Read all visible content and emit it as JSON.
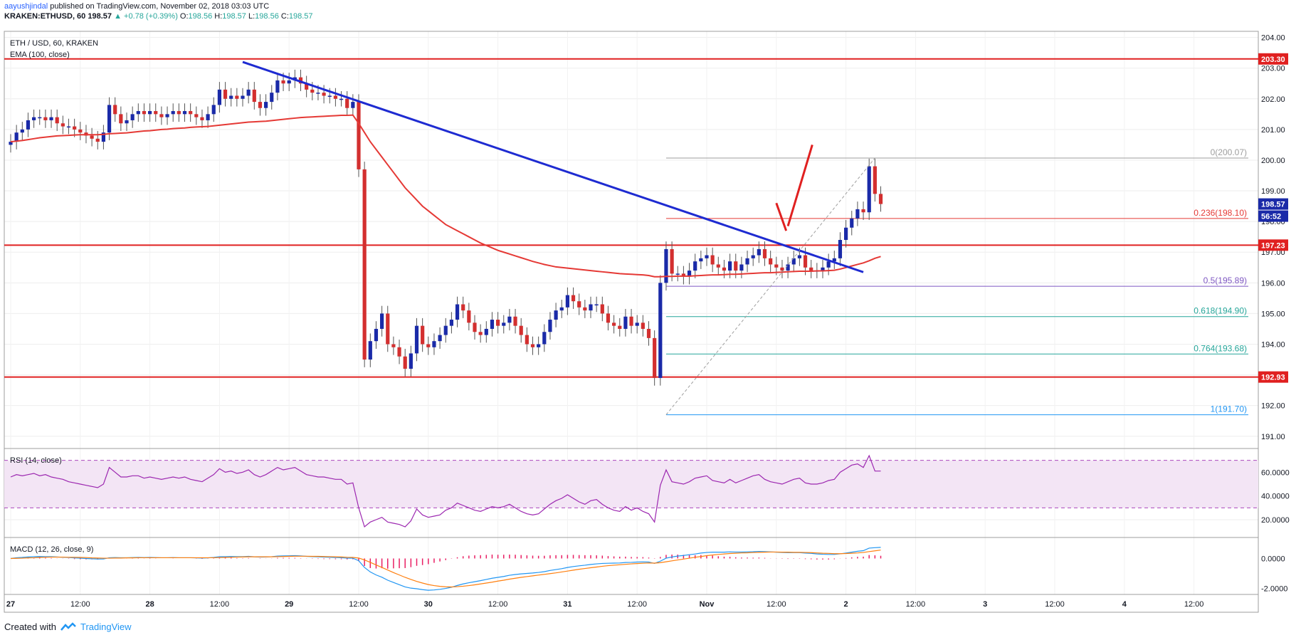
{
  "header": {
    "author": "aayushjindal",
    "published_text": "published on TradingView.com, November 02, 2018 03:03 UTC",
    "symbol": "KRAKEN:ETHUSD, 60",
    "last": "198.57",
    "change": "▲ +0.78 (+0.39%)",
    "o_label": "O:",
    "o_value": "198.56",
    "h_label": "H:",
    "h_value": "198.57",
    "l_label": "L:",
    "l_value": "198.56",
    "c_label": "C:",
    "c_value": "198.57"
  },
  "footer": {
    "created_with": "Created with",
    "brand": "TradingView"
  },
  "colors": {
    "up": "#1a2aa8",
    "down": "#d32f2f",
    "ema": "#e53935",
    "trend": "#1e2bd1",
    "support": "#e02020",
    "rsi": "#9c27b0",
    "rsi_band": "#f3e5f5",
    "macd": "#2196f3",
    "signal": "#ff7f0e",
    "hist": "#e91e63"
  },
  "chart_data": [
    {
      "type": "candlestick",
      "title": "ETH / USD, 60, KRAKEN",
      "indicator_label": "EMA (100, close)",
      "timeframe_hours": 1,
      "x_ticks": [
        "27",
        "12:00",
        "28",
        "12:00",
        "29",
        "12:00",
        "30",
        "12:00",
        "31",
        "12:00",
        "Nov",
        "12:00",
        "2",
        "12:00",
        "3",
        "12:00",
        "4",
        "12:00"
      ],
      "ylim": [
        190.6,
        204.2
      ],
      "y_ticks": [
        "191.00",
        "192.00",
        "193.00",
        "194.00",
        "195.00",
        "196.00",
        "197.00",
        "198.00",
        "199.00",
        "200.00",
        "201.00",
        "202.00",
        "203.00",
        "204.00"
      ],
      "last_price_label": "198.57",
      "countdown_label": "56:52",
      "horizontal_levels": [
        {
          "price": 203.3,
          "label": "203.30"
        },
        {
          "price": 197.23,
          "label": "197.23"
        },
        {
          "price": 192.93,
          "label": "192.93"
        }
      ],
      "fibonacci": [
        {
          "level": "0",
          "price": 200.07,
          "label": "0(200.07)",
          "color": "#9e9e9e"
        },
        {
          "level": "0.236",
          "price": 198.1,
          "label": "0.236(198.10)",
          "color": "#e53935"
        },
        {
          "level": "0.5",
          "price": 195.89,
          "label": "0.5(195.89)",
          "color": "#7e57c2"
        },
        {
          "level": "0.618",
          "price": 194.9,
          "label": "0.618(194.90)",
          "color": "#26a69a"
        },
        {
          "level": "0.764",
          "price": 193.68,
          "label": "0.764(193.68)",
          "color": "#26a69a"
        },
        {
          "level": "1",
          "price": 191.7,
          "label": "1(191.70)",
          "color": "#2196f3"
        }
      ],
      "closes": [
        200.6,
        200.9,
        201.0,
        201.3,
        201.4,
        201.4,
        201.3,
        201.4,
        201.2,
        201.1,
        201.1,
        201.0,
        200.9,
        200.8,
        200.7,
        200.6,
        200.9,
        201.8,
        201.5,
        201.2,
        201.3,
        201.5,
        201.6,
        201.5,
        201.6,
        201.5,
        201.4,
        201.5,
        201.6,
        201.5,
        201.6,
        201.5,
        201.4,
        201.3,
        201.5,
        201.8,
        202.3,
        202.0,
        202.1,
        202.0,
        202.1,
        202.3,
        201.9,
        201.7,
        201.9,
        202.2,
        202.6,
        202.5,
        202.6,
        202.7,
        202.5,
        202.3,
        202.2,
        202.2,
        202.1,
        202.1,
        202.0,
        202.0,
        201.7,
        201.9,
        199.7,
        193.5,
        194.1,
        194.5,
        195.0,
        194.0,
        193.9,
        193.6,
        193.2,
        193.7,
        194.6,
        194.0,
        193.9,
        194.1,
        194.3,
        194.6,
        194.8,
        195.3,
        195.1,
        194.7,
        194.4,
        194.3,
        194.5,
        194.8,
        194.6,
        194.7,
        194.9,
        194.6,
        194.3,
        194.0,
        193.9,
        194.0,
        194.4,
        194.8,
        195.1,
        195.2,
        195.6,
        195.4,
        195.2,
        195.1,
        195.3,
        195.3,
        195.0,
        194.7,
        194.6,
        194.5,
        194.9,
        194.6,
        194.7,
        194.5,
        194.2,
        192.9,
        196.0,
        197.1,
        196.3,
        196.3,
        196.2,
        196.4,
        196.7,
        196.8,
        196.9,
        196.6,
        196.5,
        196.4,
        196.7,
        196.4,
        196.6,
        196.8,
        196.9,
        197.1,
        196.8,
        196.6,
        196.5,
        196.4,
        196.6,
        196.8,
        196.9,
        196.5,
        196.4,
        196.4,
        196.5,
        196.7,
        196.8,
        197.4,
        197.8,
        198.1,
        198.4,
        198.3,
        199.8,
        198.9,
        198.57
      ],
      "ema_100": [
        200.6,
        200.62,
        200.64,
        200.67,
        200.7,
        200.73,
        200.75,
        200.77,
        200.79,
        200.8,
        200.81,
        200.82,
        200.83,
        200.83,
        200.83,
        200.83,
        200.84,
        200.86,
        200.87,
        200.88,
        200.89,
        200.91,
        200.93,
        200.95,
        200.96,
        200.98,
        201.0,
        201.01,
        201.03,
        201.04,
        201.05,
        201.07,
        201.08,
        201.09,
        201.1,
        201.12,
        201.14,
        201.16,
        201.18,
        201.2,
        201.22,
        201.24,
        201.25,
        201.26,
        201.27,
        201.29,
        201.31,
        201.33,
        201.35,
        201.37,
        201.39,
        201.4,
        201.41,
        201.42,
        201.43,
        201.44,
        201.45,
        201.46,
        201.46,
        201.47,
        201.2,
        200.9,
        200.6,
        200.35,
        200.1,
        199.85,
        199.6,
        199.35,
        199.1,
        198.9,
        198.7,
        198.5,
        198.35,
        198.2,
        198.05,
        197.9,
        197.8,
        197.7,
        197.6,
        197.5,
        197.4,
        197.3,
        197.22,
        197.14,
        197.06,
        197.0,
        196.94,
        196.88,
        196.82,
        196.76,
        196.7,
        196.65,
        196.6,
        196.56,
        196.52,
        196.5,
        196.48,
        196.46,
        196.44,
        196.42,
        196.4,
        196.38,
        196.36,
        196.34,
        196.32,
        196.3,
        196.29,
        196.28,
        196.27,
        196.26,
        196.24,
        196.2,
        196.2,
        196.21,
        196.21,
        196.22,
        196.22,
        196.22,
        196.23,
        196.24,
        196.25,
        196.26,
        196.26,
        196.27,
        196.28,
        196.28,
        196.29,
        196.3,
        196.31,
        196.32,
        196.33,
        196.33,
        196.34,
        196.35,
        196.36,
        196.37,
        196.38,
        196.38,
        196.38,
        196.39,
        196.39,
        196.4,
        196.41,
        196.45,
        196.5,
        196.55,
        196.6,
        196.65,
        196.72,
        196.8,
        196.86
      ]
    },
    {
      "type": "line",
      "title": "RSI (14, close)",
      "ylim": [
        5,
        80
      ],
      "y_ticks": [
        "20.0000",
        "40.0000",
        "60.0000"
      ],
      "bands": [
        30,
        70
      ],
      "values": [
        56,
        58,
        57,
        58,
        59,
        57,
        58,
        56,
        55,
        54,
        52,
        51,
        50,
        49,
        48,
        47,
        50,
        64,
        60,
        56,
        56,
        57,
        57,
        55,
        56,
        55,
        54,
        55,
        56,
        55,
        56,
        54,
        53,
        52,
        55,
        58,
        63,
        60,
        61,
        59,
        60,
        62,
        58,
        56,
        58,
        61,
        64,
        62,
        63,
        64,
        61,
        58,
        57,
        56,
        56,
        55,
        54,
        54,
        50,
        51,
        30,
        14,
        18,
        20,
        22,
        18,
        17,
        16,
        14,
        19,
        29,
        24,
        22,
        23,
        24,
        28,
        30,
        34,
        32,
        30,
        28,
        27,
        29,
        31,
        30,
        31,
        33,
        30,
        27,
        25,
        24,
        25,
        29,
        33,
        36,
        38,
        41,
        38,
        35,
        33,
        36,
        37,
        33,
        30,
        28,
        27,
        31,
        28,
        30,
        27,
        25,
        18,
        49,
        62,
        52,
        51,
        50,
        52,
        55,
        56,
        57,
        53,
        52,
        51,
        54,
        51,
        53,
        55,
        57,
        58,
        54,
        52,
        51,
        50,
        52,
        54,
        55,
        51,
        50,
        50,
        51,
        53,
        54,
        60,
        63,
        66,
        67,
        64,
        74,
        61,
        61
      ]
    },
    {
      "type": "histogram+line",
      "title": "MACD (12, 26, close, 9)",
      "ylim": [
        -2.4,
        1.4
      ],
      "y_ticks": [
        "0.0000",
        "-2.0000"
      ],
      "macd": [
        0.0,
        0.05,
        0.07,
        0.1,
        0.12,
        0.13,
        0.12,
        0.12,
        0.1,
        0.08,
        0.06,
        0.04,
        0.02,
        0.0,
        -0.02,
        -0.04,
        -0.03,
        0.05,
        0.06,
        0.05,
        0.05,
        0.06,
        0.07,
        0.06,
        0.07,
        0.06,
        0.05,
        0.05,
        0.06,
        0.05,
        0.05,
        0.05,
        0.04,
        0.03,
        0.04,
        0.07,
        0.12,
        0.12,
        0.13,
        0.12,
        0.12,
        0.14,
        0.11,
        0.09,
        0.1,
        0.12,
        0.16,
        0.17,
        0.18,
        0.19,
        0.17,
        0.14,
        0.12,
        0.11,
        0.09,
        0.08,
        0.06,
        0.05,
        0.02,
        0.02,
        -0.15,
        -0.6,
        -0.9,
        -1.1,
        -1.25,
        -1.45,
        -1.6,
        -1.75,
        -1.9,
        -1.98,
        -2.02,
        -2.08,
        -2.12,
        -2.1,
        -2.06,
        -2.0,
        -1.92,
        -1.8,
        -1.7,
        -1.62,
        -1.55,
        -1.48,
        -1.4,
        -1.32,
        -1.26,
        -1.2,
        -1.12,
        -1.07,
        -1.03,
        -1.0,
        -0.97,
        -0.93,
        -0.88,
        -0.8,
        -0.74,
        -0.68,
        -0.6,
        -0.54,
        -0.49,
        -0.45,
        -0.4,
        -0.36,
        -0.33,
        -0.32,
        -0.31,
        -0.3,
        -0.27,
        -0.26,
        -0.24,
        -0.23,
        -0.24,
        -0.33,
        -0.18,
        0.02,
        0.1,
        0.16,
        0.2,
        0.25,
        0.3,
        0.36,
        0.4,
        0.42,
        0.42,
        0.42,
        0.44,
        0.43,
        0.43,
        0.44,
        0.45,
        0.47,
        0.46,
        0.44,
        0.42,
        0.4,
        0.39,
        0.39,
        0.39,
        0.36,
        0.34,
        0.3,
        0.28,
        0.27,
        0.27,
        0.31,
        0.36,
        0.42,
        0.48,
        0.52,
        0.69,
        0.72,
        0.74
      ],
      "signal": [
        0.0,
        0.01,
        0.02,
        0.04,
        0.05,
        0.07,
        0.08,
        0.09,
        0.09,
        0.09,
        0.08,
        0.08,
        0.07,
        0.06,
        0.04,
        0.03,
        0.02,
        0.02,
        0.03,
        0.03,
        0.04,
        0.04,
        0.05,
        0.05,
        0.05,
        0.05,
        0.05,
        0.05,
        0.05,
        0.05,
        0.05,
        0.05,
        0.05,
        0.05,
        0.05,
        0.05,
        0.06,
        0.07,
        0.08,
        0.09,
        0.1,
        0.11,
        0.11,
        0.11,
        0.11,
        0.11,
        0.12,
        0.13,
        0.14,
        0.15,
        0.15,
        0.15,
        0.14,
        0.14,
        0.13,
        0.12,
        0.11,
        0.1,
        0.08,
        0.07,
        0.03,
        -0.1,
        -0.26,
        -0.43,
        -0.6,
        -0.77,
        -0.94,
        -1.1,
        -1.26,
        -1.4,
        -1.53,
        -1.64,
        -1.74,
        -1.81,
        -1.86,
        -1.89,
        -1.9,
        -1.88,
        -1.85,
        -1.81,
        -1.76,
        -1.7,
        -1.64,
        -1.58,
        -1.51,
        -1.45,
        -1.38,
        -1.32,
        -1.26,
        -1.21,
        -1.16,
        -1.11,
        -1.06,
        -1.01,
        -0.96,
        -0.9,
        -0.84,
        -0.78,
        -0.72,
        -0.67,
        -0.62,
        -0.57,
        -0.52,
        -0.48,
        -0.45,
        -0.42,
        -0.39,
        -0.36,
        -0.34,
        -0.32,
        -0.3,
        -0.31,
        -0.28,
        -0.22,
        -0.16,
        -0.1,
        -0.04,
        0.02,
        0.08,
        0.13,
        0.19,
        0.23,
        0.27,
        0.3,
        0.33,
        0.35,
        0.37,
        0.38,
        0.4,
        0.41,
        0.42,
        0.43,
        0.43,
        0.42,
        0.42,
        0.41,
        0.41,
        0.4,
        0.39,
        0.37,
        0.35,
        0.34,
        0.32,
        0.32,
        0.33,
        0.35,
        0.37,
        0.4,
        0.46,
        0.51,
        0.56
      ]
    }
  ]
}
